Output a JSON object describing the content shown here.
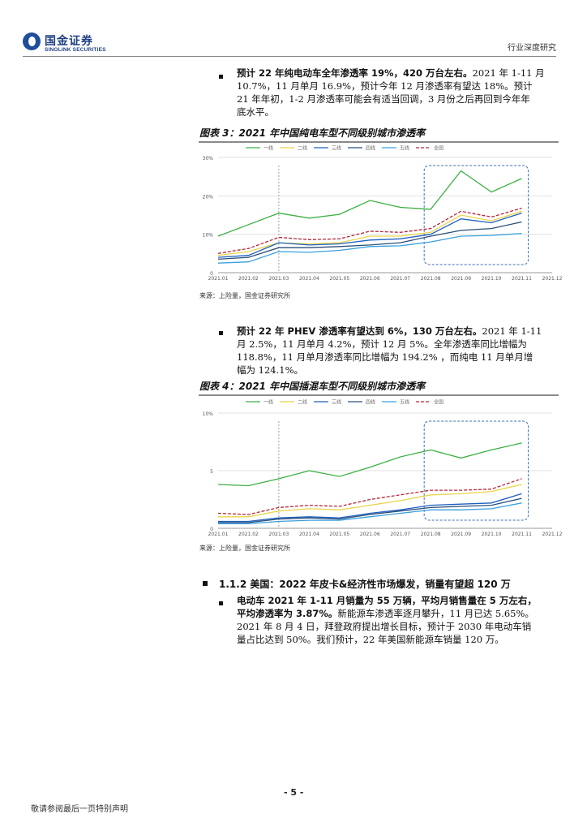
{
  "header": {
    "logo_cn": "国金证券",
    "logo_en": "SINOLINK SECURITIES",
    "category": "行业深度研究"
  },
  "para1": {
    "bold": "预计 22 年纯电动车全年渗透率 19%，420 万台左右。",
    "text": "2021 年 1-11 月 10.7%，11 月单月 16.9%，预计今年 12 月渗透率有望达 18%。预计 21 年年初，1-2 月渗透率可能会有适当回调，3 月份之后再回到今年年底水平。",
    "lines": [
      "2021 年 1-11 月",
      "10.7%，11 月单月 16.9%，预计今年 12 月渗透率有望达 18%。预计",
      "21 年年初，1-2 月渗透率可能会有适当回调，3 月份之后再回到今年年",
      "底水平。"
    ]
  },
  "fig3": {
    "title": "图表 3：2021 年中国纯电车型不同级别城市渗透率",
    "source": "来源：上险量，国金证券研究所"
  },
  "para2": {
    "bold": "预计 22 年 PHEV 渗透率有望达到 6%，130 万台左右。",
    "lines": [
      "2021 年 1-11",
      "月 2.5%，11 月单月 4.2%，预计 12 月 5%。全年渗透率同比增幅为",
      "118.8%，11 月单月渗透率同比增幅为 194.2% ，而纯电 11 月单月增",
      "幅为 124.1%。"
    ]
  },
  "fig4": {
    "title": "图表 4：2021 年中国插混车型不同级别城市渗透率",
    "source": "来源：上险量，国金证券研究所"
  },
  "section": {
    "heading": "1.1.2 美国：2022 年皮卡&经济性市场爆发，销量有望超 120 万"
  },
  "para3": {
    "bold1": "电动车 2021 年 1-11 月销量为 55 万辆，平均月销售量在 5 万左右，",
    "bold2": "平均渗透率为 3.87%。",
    "lines": [
      "新能源车渗透率逐月攀升，11 月已达 5.65%。",
      "2021 年 8 月 4 日，拜登政府提出增长目标，预计于 2030 年电动车销",
      "量占比达到 50%。我们预计，22 年美国新能源车销量 120 万。"
    ]
  },
  "footer": {
    "page": "- 5 -",
    "note": "敬请参阅最后一页特别声明"
  },
  "chart_data": [
    {
      "type": "line",
      "x": [
        "2021.01",
        "2021.02",
        "2021.03",
        "2021.04",
        "2021.05",
        "2021.06",
        "2021.07",
        "2021.08",
        "2021.09",
        "2021.10",
        "2021.11",
        "2021.12"
      ],
      "ylim": [
        0,
        30
      ],
      "yticks": [
        "0",
        "10%",
        "20%",
        "30%"
      ],
      "legend": "top",
      "series": [
        {
          "name": "一线",
          "color": "#3cb043",
          "dash": false,
          "values": [
            9.5,
            12.5,
            15.5,
            14.2,
            15.2,
            18.8,
            17,
            16.5,
            26.5,
            21,
            24.5,
            null
          ]
        },
        {
          "name": "二线",
          "color": "#e8d44a",
          "dash": false,
          "values": [
            4.5,
            5.5,
            7.8,
            7.5,
            7.8,
            9.5,
            9.5,
            10.5,
            15,
            13.5,
            16,
            null
          ]
        },
        {
          "name": "三线",
          "color": "#1f5fbf",
          "dash": false,
          "values": [
            4,
            4.5,
            7.8,
            7.2,
            7.5,
            8.5,
            8.8,
            10,
            14,
            13,
            15.5,
            null
          ]
        },
        {
          "name": "四线",
          "color": "#2a4f7a",
          "dash": false,
          "values": [
            3.5,
            4,
            6.5,
            6.5,
            6.8,
            7.2,
            7.8,
            9.5,
            11,
            11.5,
            13.2,
            null
          ]
        },
        {
          "name": "五线",
          "color": "#3aa0dc",
          "dash": false,
          "values": [
            2.5,
            2.8,
            5.5,
            5.3,
            5.8,
            6.8,
            7,
            8,
            9.5,
            9.7,
            10.2,
            null
          ]
        },
        {
          "name": "全国",
          "color": "#b5263b",
          "dash": true,
          "values": [
            5,
            6.3,
            9.2,
            8.6,
            8.8,
            10.8,
            10.5,
            11.5,
            16,
            14.5,
            16.8,
            null
          ]
        }
      ],
      "highlight": {
        "from": "2021.08",
        "to": "2021.11"
      },
      "marker_line": "2021.03"
    },
    {
      "type": "line",
      "x": [
        "2021.01",
        "2021.02",
        "2021.03",
        "2021.04",
        "2021.05",
        "2021.06",
        "2021.07",
        "2021.08",
        "2021.09",
        "2021.10",
        "2021.11",
        "2021.12"
      ],
      "ylim": [
        0,
        10
      ],
      "yticks": [
        "0",
        "5",
        "10%"
      ],
      "legend": "top",
      "series": [
        {
          "name": "一线",
          "color": "#3cb043",
          "dash": false,
          "values": [
            3.8,
            3.7,
            4.3,
            5,
            4.5,
            5.3,
            6.2,
            6.8,
            6.1,
            6.8,
            7.4,
            null
          ]
        },
        {
          "name": "二线",
          "color": "#e8d44a",
          "dash": false,
          "values": [
            1,
            1,
            1.5,
            1.7,
            1.6,
            2,
            2.4,
            2.9,
            3,
            3.2,
            3.8,
            null
          ]
        },
        {
          "name": "三线",
          "color": "#1f5fbf",
          "dash": false,
          "values": [
            0.6,
            0.6,
            0.9,
            1,
            0.9,
            1.3,
            1.6,
            2,
            2.1,
            2.2,
            3,
            null
          ]
        },
        {
          "name": "四线",
          "color": "#2a4f7a",
          "dash": false,
          "values": [
            0.5,
            0.5,
            0.8,
            0.9,
            0.8,
            1.2,
            1.5,
            1.8,
            1.9,
            2,
            2.6,
            null
          ]
        },
        {
          "name": "五线",
          "color": "#3aa0dc",
          "dash": false,
          "values": [
            0.4,
            0.4,
            0.6,
            0.7,
            0.7,
            1,
            1.3,
            1.6,
            1.6,
            1.7,
            2.2,
            null
          ]
        },
        {
          "name": "全国",
          "color": "#b5263b",
          "dash": true,
          "values": [
            1.3,
            1.2,
            1.8,
            2,
            1.9,
            2.5,
            2.9,
            3.3,
            3.3,
            3.4,
            4.3,
            null
          ]
        }
      ],
      "highlight": {
        "from": "2021.08",
        "to": "2021.11"
      },
      "marker_line": "2021.03"
    }
  ]
}
